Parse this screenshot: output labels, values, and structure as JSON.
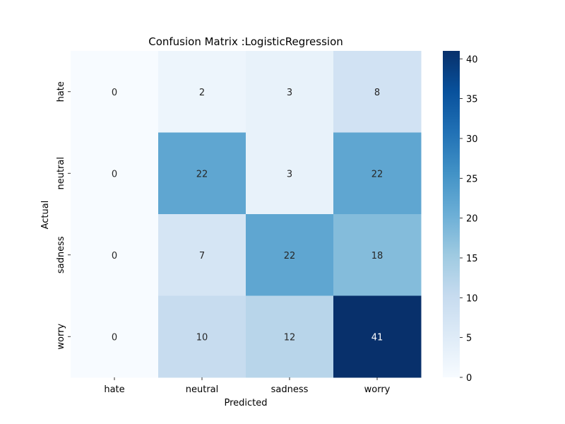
{
  "chart_data": {
    "type": "heatmap",
    "title": "Confusion Matrix :LogisticRegression",
    "xlabel": "Predicted",
    "ylabel": "Actual",
    "x_categories": [
      "hate",
      "neutral",
      "sadness",
      "worry"
    ],
    "y_categories": [
      "hate",
      "neutral",
      "sadness",
      "worry"
    ],
    "values": [
      [
        0,
        2,
        3,
        8
      ],
      [
        0,
        22,
        3,
        22
      ],
      [
        0,
        7,
        22,
        18
      ],
      [
        0,
        10,
        12,
        41
      ]
    ],
    "colorbar": {
      "vmin": 0,
      "vmax": 41,
      "ticks": [
        0,
        5,
        10,
        15,
        20,
        25,
        30,
        35,
        40
      ],
      "colormap": "Blues"
    },
    "annotations": true,
    "grid": false
  }
}
